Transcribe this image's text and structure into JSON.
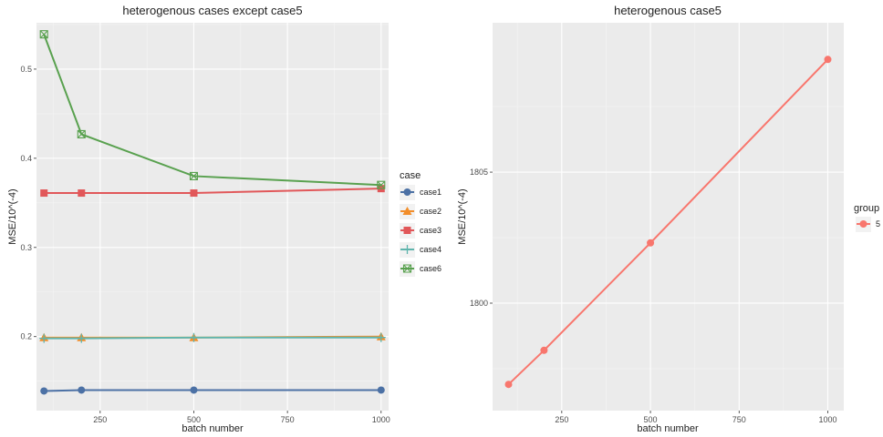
{
  "chart_data": [
    {
      "type": "line",
      "title": "heterogenous cases except case5",
      "xlabel": "batch number",
      "ylabel": "MSE/10^(-4)",
      "xlim": [
        80,
        1020
      ],
      "ylim": [
        0.117,
        0.552
      ],
      "x_ticks": [
        250,
        500,
        750,
        1000
      ],
      "y_ticks": [
        0.2,
        0.3,
        0.4,
        0.5
      ],
      "x_tick_labels": [
        "250",
        "500",
        "750",
        "1000"
      ],
      "y_tick_labels": [
        "0.2",
        "0.3",
        "0.4",
        "0.5"
      ],
      "x": [
        100,
        200,
        500,
        1000
      ],
      "legend_title": "case",
      "legend_position": "right",
      "grid": true,
      "series": [
        {
          "name": "case1",
          "color": "#4c71a5",
          "marker": "circle",
          "values": [
            0.139,
            0.14,
            0.14,
            0.14
          ]
        },
        {
          "name": "case2",
          "color": "#f28e2b",
          "marker": "triangle",
          "values": [
            0.199,
            0.199,
            0.199,
            0.2
          ]
        },
        {
          "name": "case3",
          "color": "#e15759",
          "marker": "square",
          "values": [
            0.361,
            0.361,
            0.361,
            0.366
          ]
        },
        {
          "name": "case4",
          "color": "#5fb5ad",
          "marker": "plus",
          "values": [
            0.198,
            0.198,
            0.199,
            0.199
          ]
        },
        {
          "name": "case6",
          "color": "#59a14f",
          "marker": "boxcross",
          "values": [
            0.539,
            0.427,
            0.38,
            0.37
          ]
        }
      ]
    },
    {
      "type": "line",
      "title": "heterogenous case5",
      "xlabel": "batch number",
      "ylabel": "MSE/10^(-4)",
      "xlim": [
        55,
        1045
      ],
      "ylim": [
        1795.9,
        1810.7
      ],
      "x_ticks": [
        250,
        500,
        750,
        1000
      ],
      "y_ticks": [
        1800,
        1805
      ],
      "x_tick_labels": [
        "250",
        "500",
        "750",
        "1000"
      ],
      "y_tick_labels": [
        "1800",
        "1805"
      ],
      "x": [
        100,
        200,
        500,
        1000
      ],
      "legend_title": "group",
      "legend_position": "right",
      "grid": true,
      "series": [
        {
          "name": "5",
          "color": "#f8766d",
          "marker": "circle",
          "values": [
            1796.9,
            1798.2,
            1802.3,
            1809.3
          ]
        }
      ]
    }
  ]
}
